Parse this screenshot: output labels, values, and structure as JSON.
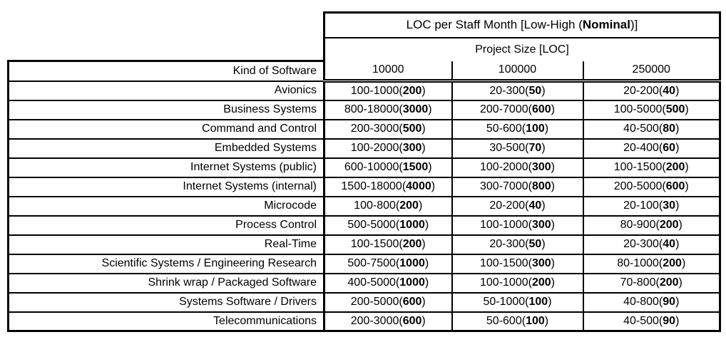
{
  "canvas": {
    "background": "#ffffff",
    "line_color": "#000000"
  },
  "table": {
    "title_prefix": "LOC per Staff Month [Low-High (",
    "title_bold": "Nominal",
    "title_suffix": ")]",
    "project_size_header": "Project Size [LOC]",
    "row_header": "Kind of Software",
    "size_columns": [
      "10000",
      "100000",
      "250000"
    ],
    "rows": [
      {
        "label": "Avionics",
        "cells": [
          [
            "100-1000",
            "200"
          ],
          [
            "20-300",
            "50"
          ],
          [
            "20-200",
            "40"
          ]
        ]
      },
      {
        "label": "Business Systems",
        "cells": [
          [
            "800-18000",
            "3000"
          ],
          [
            "200-7000",
            "600"
          ],
          [
            "100-5000",
            "500"
          ]
        ]
      },
      {
        "label": "Command and Control",
        "cells": [
          [
            "200-3000",
            "500"
          ],
          [
            "50-600",
            "100"
          ],
          [
            "40-500",
            "80"
          ]
        ]
      },
      {
        "label": "Embedded Systems",
        "cells": [
          [
            "100-2000",
            "300"
          ],
          [
            "30-500",
            "70"
          ],
          [
            "20-400",
            "60"
          ]
        ]
      },
      {
        "label": "Internet Systems (public)",
        "cells": [
          [
            "600-10000",
            "1500"
          ],
          [
            "100-2000",
            "300"
          ],
          [
            "100-1500",
            "200"
          ]
        ]
      },
      {
        "label": "Internet Systems (internal)",
        "cells": [
          [
            "1500-18000",
            "4000"
          ],
          [
            "300-7000",
            "800"
          ],
          [
            "200-5000",
            "600"
          ]
        ]
      },
      {
        "label": "Microcode",
        "cells": [
          [
            "100-800",
            "200"
          ],
          [
            "20-200",
            "40"
          ],
          [
            "20-100",
            "30"
          ]
        ]
      },
      {
        "label": "Process Control",
        "cells": [
          [
            "500-5000",
            "1000"
          ],
          [
            "100-1000",
            "300"
          ],
          [
            "80-900",
            "200"
          ]
        ]
      },
      {
        "label": "Real-Time",
        "cells": [
          [
            "100-1500",
            "200"
          ],
          [
            "20-300",
            "50"
          ],
          [
            "20-300",
            "40"
          ]
        ]
      },
      {
        "label": "Scientific Systems / Engineering Research",
        "cells": [
          [
            "500-7500",
            "1000"
          ],
          [
            "100-1500",
            "300"
          ],
          [
            "80-1000",
            "200"
          ]
        ]
      },
      {
        "label": "Shrink wrap / Packaged Software",
        "cells": [
          [
            "400-5000",
            "1000"
          ],
          [
            "100-1000",
            "200"
          ],
          [
            "70-800",
            "200"
          ]
        ]
      },
      {
        "label": "Systems Software / Drivers",
        "cells": [
          [
            "200-5000",
            "600"
          ],
          [
            "50-1000",
            "100"
          ],
          [
            "40-800",
            "90"
          ]
        ]
      },
      {
        "label": "Telecommunications",
        "cells": [
          [
            "200-3000",
            "600"
          ],
          [
            "50-600",
            "100"
          ],
          [
            "40-500",
            "90"
          ]
        ]
      }
    ]
  }
}
